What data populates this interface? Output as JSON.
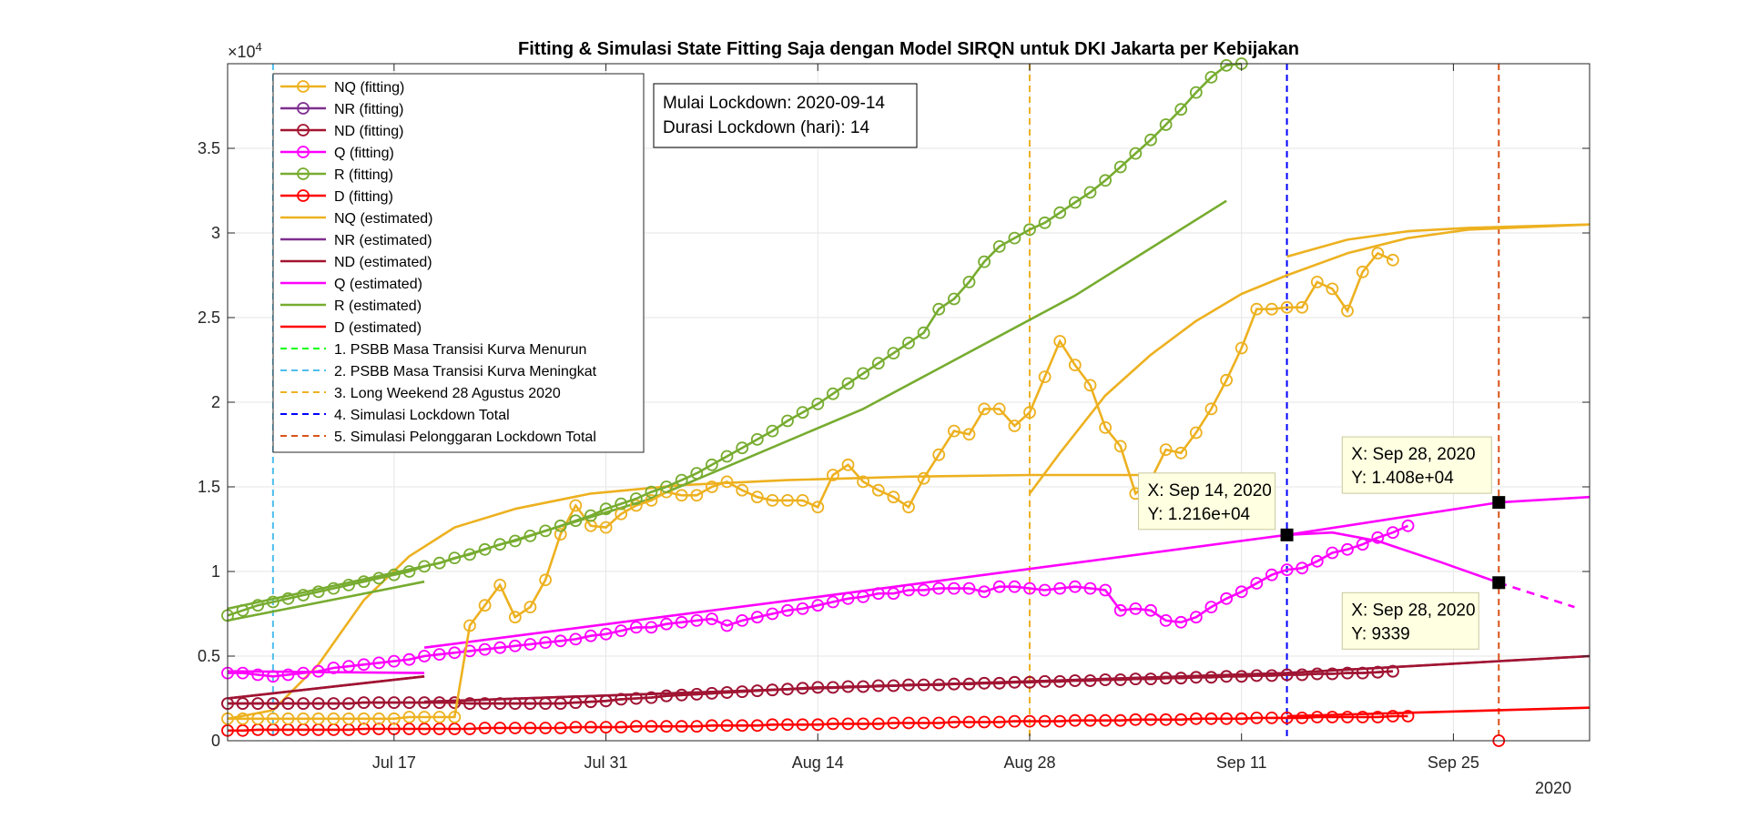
{
  "chart_data": {
    "type": "line",
    "title": "Fitting & Simulasi State Fitting Saja dengan Model SIRQN untuk DKI Jakarta per Kebijakan",
    "xlabel": "",
    "ylabel": "",
    "x_start": "2020-07-06",
    "x_end": "2020-10-04",
    "ylim": [
      0,
      40000
    ],
    "y_exponent_label": "×10",
    "y_exponent_power": "4",
    "y_ticks": [
      {
        "value": 0,
        "label": "0"
      },
      {
        "value": 5000,
        "label": "0.5"
      },
      {
        "value": 10000,
        "label": "1"
      },
      {
        "value": 15000,
        "label": "1.5"
      },
      {
        "value": 20000,
        "label": "2"
      },
      {
        "value": 25000,
        "label": "2.5"
      },
      {
        "value": 30000,
        "label": "3"
      },
      {
        "value": 35000,
        "label": "3.5"
      }
    ],
    "x_ticks": [
      {
        "date": "2020-07-17",
        "label": "Jul 17"
      },
      {
        "date": "2020-07-31",
        "label": "Jul 31"
      },
      {
        "date": "2020-08-14",
        "label": "Aug 14"
      },
      {
        "date": "2020-08-28",
        "label": "Aug 28"
      },
      {
        "date": "2020-09-11",
        "label": "Sep 11"
      },
      {
        "date": "2020-09-25",
        "label": "Sep 25"
      }
    ],
    "x_year_label": "2020",
    "grid": true,
    "legend_position": "top-left",
    "colors": {
      "NQ": "#EDB120",
      "NR": "#7E2F8E",
      "ND": "#A2142F",
      "Q": "#FF00FF",
      "R": "#77AC30",
      "D": "#FF0000",
      "policy1": "#00FF00",
      "policy2": "#4DBEEE",
      "policy3": "#EDB120",
      "policy4": "#0000FF",
      "policy5": "#D95319"
    },
    "series": [
      {
        "name": "NQ (fitting)",
        "key": "NQ",
        "style": "markers",
        "start": "2020-07-06",
        "values": [
          1300,
          1300,
          1300,
          1300,
          1300,
          1300,
          1300,
          1300,
          1300,
          1300,
          1300,
          1300,
          1400,
          1400,
          1400,
          1400,
          6800,
          8000,
          9200,
          7300,
          7900,
          9500,
          12200,
          13900,
          12700,
          12600,
          13400,
          13900,
          14200,
          14700,
          14500,
          14500,
          15000,
          15300,
          14800,
          14400,
          14200,
          14200,
          14200,
          13800,
          15700,
          16300,
          15300,
          14800,
          14400,
          13800,
          15500,
          16900,
          18300,
          18100,
          19600,
          19600,
          18600,
          19400,
          21500,
          23600,
          22200,
          21000,
          18500,
          17400,
          14600,
          15400,
          17200,
          17000,
          18200,
          19600,
          21300,
          23200,
          25500,
          25500,
          25600,
          25600,
          27100,
          26700,
          25400,
          27700,
          28800,
          28400
        ]
      },
      {
        "name": "NR (fitting)",
        "key": "NR",
        "style": "markers",
        "start": "2020-07-06",
        "values": [
          2200,
          2200,
          2200,
          2200,
          2200,
          2200,
          2200,
          2200,
          2200,
          2250,
          2250,
          2250,
          2250,
          2250,
          2250,
          2250,
          2200,
          2200,
          2200,
          2200,
          2200,
          2200,
          2200,
          2250,
          2300,
          2350,
          2450,
          2500,
          2550,
          2650,
          2700,
          2750,
          2800,
          2850,
          2900,
          2950,
          3000,
          3050,
          3100,
          3150,
          3150,
          3200,
          3200,
          3250,
          3250,
          3300,
          3300,
          3300,
          3350,
          3350,
          3400,
          3400,
          3450,
          3450,
          3500,
          3500,
          3550,
          3550,
          3600,
          3600,
          3650,
          3650,
          3700,
          3700,
          3750,
          3750,
          3800,
          3800,
          3850,
          3850,
          3900,
          3900,
          3950,
          3950,
          4000,
          4000,
          4050,
          4100
        ]
      },
      {
        "name": "ND (fitting)",
        "key": "ND",
        "style": "markers",
        "start": "2020-07-06",
        "values": [
          2200,
          2200,
          2200,
          2200,
          2200,
          2200,
          2200,
          2200,
          2200,
          2250,
          2250,
          2250,
          2250,
          2250,
          2250,
          2250,
          2200,
          2200,
          2200,
          2200,
          2200,
          2200,
          2200,
          2250,
          2300,
          2350,
          2450,
          2500,
          2550,
          2650,
          2700,
          2750,
          2800,
          2850,
          2900,
          2950,
          3000,
          3050,
          3100,
          3150,
          3150,
          3200,
          3200,
          3250,
          3250,
          3300,
          3300,
          3300,
          3350,
          3350,
          3400,
          3400,
          3450,
          3450,
          3500,
          3500,
          3550,
          3550,
          3600,
          3600,
          3650,
          3650,
          3700,
          3700,
          3750,
          3750,
          3800,
          3800,
          3850,
          3850,
          3900,
          3900,
          3950,
          3950,
          4000,
          4000,
          4050,
          4100
        ]
      },
      {
        "name": "Q (fitting)",
        "key": "Q",
        "style": "markers",
        "start": "2020-07-06",
        "values": [
          4000,
          4000,
          3900,
          3800,
          3900,
          4000,
          4100,
          4300,
          4400,
          4500,
          4600,
          4700,
          4800,
          5000,
          5100,
          5200,
          5300,
          5400,
          5500,
          5600,
          5700,
          5800,
          5900,
          6000,
          6200,
          6300,
          6500,
          6700,
          6700,
          6900,
          7000,
          7100,
          7200,
          6800,
          7100,
          7300,
          7500,
          7700,
          7800,
          8000,
          8200,
          8400,
          8500,
          8700,
          8700,
          8900,
          8900,
          9000,
          9000,
          9000,
          8800,
          9100,
          9100,
          9000,
          8900,
          9000,
          9100,
          9000,
          8900,
          7700,
          7800,
          7700,
          7100,
          7000,
          7300,
          7900,
          8400,
          8800,
          9300,
          9800,
          10100,
          10200,
          10600,
          11100,
          11300,
          11600,
          12000,
          12300,
          12700
        ]
      },
      {
        "name": "R (fitting)",
        "key": "R",
        "style": "markers",
        "start": "2020-07-06",
        "values": [
          7400,
          7700,
          8000,
          8200,
          8400,
          8600,
          8800,
          9000,
          9200,
          9400,
          9600,
          9800,
          10000,
          10300,
          10500,
          10800,
          11000,
          11300,
          11600,
          11800,
          12100,
          12400,
          12700,
          13000,
          13300,
          13700,
          14000,
          14300,
          14700,
          15000,
          15400,
          15800,
          16300,
          16800,
          17300,
          17800,
          18300,
          18900,
          19400,
          19900,
          20500,
          21100,
          21700,
          22300,
          22900,
          23500,
          24100,
          25500,
          26100,
          27100,
          28300,
          29200,
          29700,
          30200,
          30600,
          31200,
          31800,
          32400,
          33100,
          33900,
          34700,
          35500,
          36400,
          37300,
          38300,
          39200,
          39900,
          40000
        ]
      },
      {
        "name": "D (fitting)",
        "key": "D",
        "style": "markers",
        "start": "2020-07-06",
        "values": [
          600,
          600,
          650,
          650,
          650,
          650,
          650,
          650,
          650,
          700,
          700,
          700,
          700,
          700,
          700,
          700,
          700,
          750,
          750,
          750,
          750,
          750,
          750,
          800,
          800,
          800,
          800,
          850,
          850,
          850,
          850,
          850,
          900,
          900,
          900,
          900,
          950,
          950,
          950,
          950,
          1000,
          1000,
          1000,
          1000,
          1050,
          1050,
          1050,
          1050,
          1100,
          1100,
          1100,
          1100,
          1150,
          1150,
          1150,
          1150,
          1200,
          1200,
          1200,
          1200,
          1250,
          1250,
          1250,
          1250,
          1300,
          1300,
          1300,
          1300,
          1350,
          1350,
          1350,
          1350,
          1400,
          1400,
          1400,
          1400,
          1400,
          1450,
          1450
        ]
      },
      {
        "name": "NQ (estimated)",
        "key": "NQ",
        "style": "lines",
        "segments": [
          {
            "x": [
              "2020-07-06",
              "2020-07-09",
              "2020-07-12",
              "2020-07-15",
              "2020-07-18",
              "2020-07-21",
              "2020-07-25",
              "2020-07-30",
              "2020-08-05",
              "2020-08-12",
              "2020-08-20",
              "2020-08-28",
              "2020-09-05"
            ],
            "y": [
              1300,
              1800,
              4500,
              8300,
              10900,
              12600,
              13700,
              14600,
              15100,
              15400,
              15600,
              15700,
              15700
            ]
          },
          {
            "x": [
              "2020-08-28",
              "2020-08-30",
              "2020-09-02",
              "2020-09-05",
              "2020-09-08",
              "2020-09-11",
              "2020-09-14",
              "2020-09-18",
              "2020-09-22",
              "2020-09-26",
              "2020-10-04"
            ],
            "y": [
              14600,
              17000,
              20400,
              22800,
              24800,
              26400,
              27500,
              28800,
              29700,
              30200,
              30500
            ]
          },
          {
            "x": [
              "2020-09-14",
              "2020-09-18",
              "2020-09-22",
              "2020-09-26",
              "2020-10-04"
            ],
            "y": [
              28600,
              29600,
              30100,
              30300,
              30500
            ]
          }
        ]
      },
      {
        "name": "NR (estimated)",
        "key": "NR",
        "style": "lines",
        "segments": [
          {
            "x": [
              "2020-07-06",
              "2020-07-19"
            ],
            "y": [
              2500,
              3800
            ]
          },
          {
            "x": [
              "2020-07-19",
              "2020-08-14",
              "2020-09-14",
              "2020-10-04"
            ],
            "y": [
              2300,
              3100,
              4000,
              5000
            ]
          }
        ]
      },
      {
        "name": "ND (estimated)",
        "key": "ND",
        "style": "lines",
        "segments": [
          {
            "x": [
              "2020-07-06",
              "2020-07-19"
            ],
            "y": [
              2500,
              3800
            ]
          },
          {
            "x": [
              "2020-07-19",
              "2020-08-14",
              "2020-09-14",
              "2020-10-04"
            ],
            "y": [
              2300,
              3100,
              4000,
              5000
            ]
          }
        ]
      },
      {
        "name": "Q (estimated)",
        "key": "Q",
        "style": "lines",
        "segments": [
          {
            "x": [
              "2020-07-06",
              "2020-07-19"
            ],
            "y": [
              4100,
              4000
            ]
          },
          {
            "x": [
              "2020-07-19",
              "2020-08-14",
              "2020-09-14",
              "2020-09-28",
              "2020-10-04"
            ],
            "y": [
              5500,
              8500,
              12160,
              14080,
              14400
            ]
          },
          {
            "x": [
              "2020-09-14",
              "2020-09-17",
              "2020-09-20",
              "2020-09-24",
              "2020-09-28"
            ],
            "y": [
              12160,
              12300,
              11800,
              10600,
              9339
            ]
          },
          {
            "x": [
              "2020-09-28",
              "2020-10-03"
            ],
            "y": [
              9339,
              7900
            ],
            "dashed": true
          }
        ]
      },
      {
        "name": "R (estimated)",
        "key": "R",
        "style": "lines",
        "segments": [
          {
            "x": [
              "2020-07-06",
              "2020-07-19"
            ],
            "y": [
              7100,
              9400
            ]
          },
          {
            "x": [
              "2020-07-06",
              "2020-07-20",
              "2020-08-03",
              "2020-08-17",
              "2020-08-31",
              "2020-09-10"
            ],
            "y": [
              7800,
              10500,
              14300,
              19600,
              26300,
              31900
            ]
          }
        ]
      },
      {
        "name": "D (estimated)",
        "key": "D",
        "style": "lines",
        "segments": [
          {
            "x": [
              "2020-09-14",
              "2020-10-04"
            ],
            "y": [
              1450,
              1950
            ]
          }
        ]
      }
    ],
    "policy_lines": [
      {
        "name": "1. PSBB Masa Transisi Kurva Menurun",
        "key": "policy1",
        "date": null
      },
      {
        "name": "2. PSBB Masa Transisi Kurva Meningkat",
        "key": "policy2",
        "date": "2020-07-09"
      },
      {
        "name": "3. Long Weekend 28 Agustus 2020",
        "key": "policy3",
        "date": "2020-08-28"
      },
      {
        "name": "4. Simulasi Lockdown Total",
        "key": "policy4",
        "date": "2020-09-14"
      },
      {
        "name": "5. Simulasi Pelonggaran Lockdown Total",
        "key": "policy5",
        "date": "2020-09-28"
      }
    ],
    "extra_marker": {
      "date": "2020-09-28",
      "value": 0,
      "key": "D"
    },
    "annotation": {
      "line1": "Mulai Lockdown: 2020-09-14",
      "line2": "Durasi Lockdown (hari): 14"
    },
    "datatips": [
      {
        "x_text": "X: Sep 14, 2020",
        "y_text": "Y: 1.216e+04",
        "date": "2020-09-14",
        "value": 12160
      },
      {
        "x_text": "X: Sep 28, 2020",
        "y_text": "Y: 1.408e+04",
        "date": "2020-09-28",
        "value": 14080
      },
      {
        "x_text": "X: Sep 28, 2020",
        "y_text": "Y: 9339",
        "date": "2020-09-28",
        "value": 9339
      }
    ]
  }
}
